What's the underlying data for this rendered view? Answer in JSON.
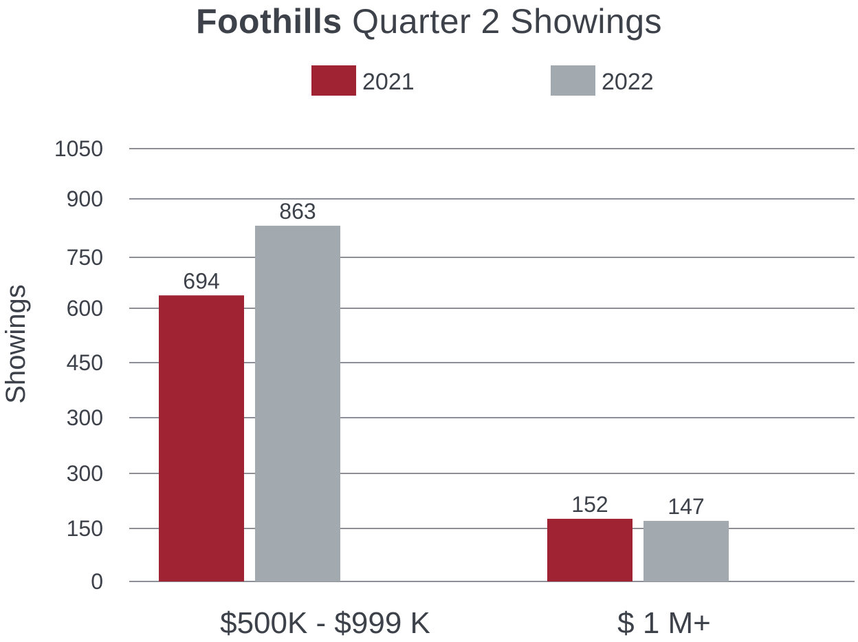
{
  "chart_data": {
    "type": "bar",
    "title_bold": "Foothills",
    "title_rest": " Quarter 2 Showings",
    "ylabel": "Showings",
    "categories": [
      "$500K - $999 K",
      "$ 1 M+"
    ],
    "series": [
      {
        "name": "2021",
        "color": "#a02334",
        "values": [
          694,
          152
        ]
      },
      {
        "name": "2022",
        "color": "#a2aab0",
        "values": [
          863,
          147
        ]
      }
    ],
    "ytick_labels": [
      "0",
      "150",
      "300",
      "300",
      "450",
      "600",
      "750",
      "900",
      "1050"
    ],
    "grid": true,
    "legend_position": "top-center"
  }
}
